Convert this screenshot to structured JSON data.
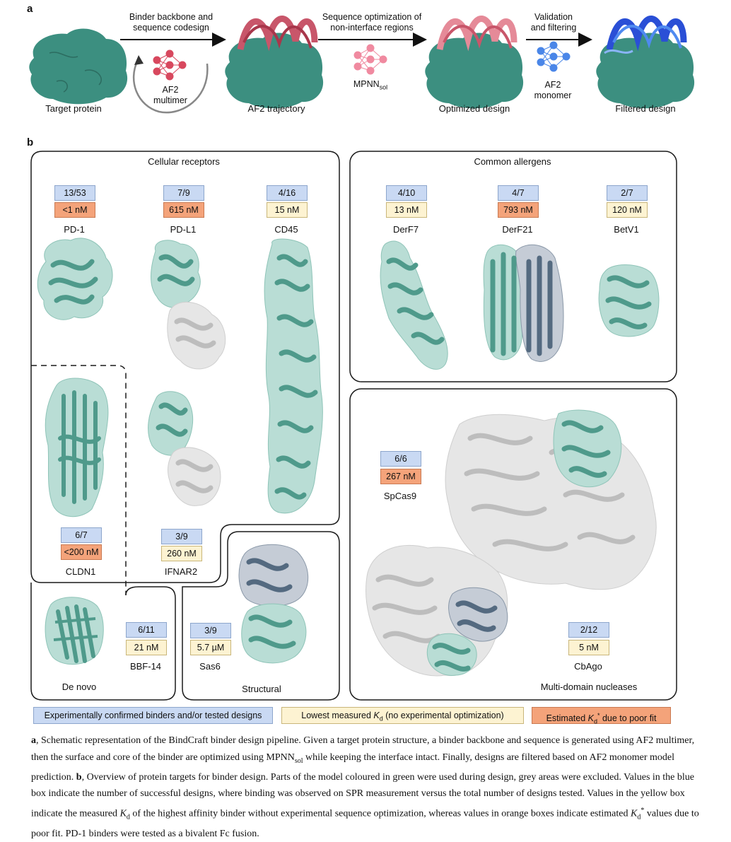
{
  "panel_a": {
    "letter": "a",
    "stage_labels": [
      "Target protein",
      "AF2 trajectory",
      "Optimized design",
      "Filtered design"
    ],
    "step1_text": [
      "Binder backbone and",
      "sequence codesign"
    ],
    "step1_net_label": [
      "AF2",
      "multimer"
    ],
    "step2_text": [
      "Sequence optimization of",
      "non-interface regions"
    ],
    "step2_net_label": "MPNN",
    "step2_net_label_sub": "sol",
    "step3_text": [
      "Validation",
      "and filtering"
    ],
    "step3_net_label": [
      "AF2",
      "monomer"
    ],
    "colors": {
      "target": "#3c8f80",
      "binder_red": "#c8566a",
      "binder_pink": "#e58a98",
      "binder_blue": "#2a4fd6",
      "net_red": "#d8485e",
      "net_pink": "#f08aa0",
      "net_blue": "#4a86e8"
    }
  },
  "panel_b": {
    "letter": "b",
    "groups": {
      "cellular": "Cellular receptors",
      "allergens": "Common allergens",
      "nucleases": "Multi-domain nucleases",
      "structural": "Structural",
      "denovo": "De novo"
    },
    "targets": {
      "pd1": {
        "name": "PD-1",
        "count": "13/53",
        "kd": "<1 nM",
        "kd_type": "estimated"
      },
      "pdl1": {
        "name": "PD-L1",
        "count": "7/9",
        "kd": "615 nM",
        "kd_type": "estimated"
      },
      "cd45": {
        "name": "CD45",
        "count": "4/16",
        "kd": "15 nM",
        "kd_type": "measured"
      },
      "derf7": {
        "name": "DerF7",
        "count": "4/10",
        "kd": "13 nM",
        "kd_type": "measured"
      },
      "derf21": {
        "name": "DerF21",
        "count": "4/7",
        "kd": "793 nM",
        "kd_type": "estimated"
      },
      "betv1": {
        "name": "BetV1",
        "count": "2/7",
        "kd": "120 nM",
        "kd_type": "measured"
      },
      "cldn1": {
        "name": "CLDN1",
        "count": "6/7",
        "kd": "<200 nM",
        "kd_type": "estimated"
      },
      "ifnar2": {
        "name": "IFNAR2",
        "count": "3/9",
        "kd": "260 nM",
        "kd_type": "measured"
      },
      "spcas9": {
        "name": "SpCas9",
        "count": "6/6",
        "kd": "267 nM",
        "kd_type": "estimated"
      },
      "bbf14": {
        "name": "BBF-14",
        "count": "6/11",
        "kd": "21 nM",
        "kd_type": "measured"
      },
      "sas6": {
        "name": "Sas6",
        "count": "3/9",
        "kd": "5.7 µM",
        "kd_type": "measured"
      },
      "cbago": {
        "name": "CbAgo",
        "count": "2/12",
        "kd": "5 nM",
        "kd_type": "measured"
      }
    },
    "colors": {
      "green": "#4f9a8b",
      "green_surface": "#b9ddd5",
      "grey": "#bdbdbd",
      "grey_surface": "#e6e6e6",
      "slate": "#546a80"
    }
  },
  "legend": {
    "blue": "Experimentally confirmed binders and/or tested designs",
    "yellow_prefix": "Lowest measured ",
    "yellow_k": "K",
    "yellow_sub": "d",
    "yellow_suffix": " (no experimental optimization)",
    "orange_prefix": "Estimated ",
    "orange_k": "K",
    "orange_sub": "d",
    "orange_sup": "*",
    "orange_suffix": " due to poor fit"
  },
  "caption": {
    "a_label": "a",
    "a_text_1": ", Schematic representation of the BindCraft binder design pipeline. Given a target protein structure, a binder backbone and sequence is generated using AF2 multimer, then the surface and core of the binder are optimized using MPNN",
    "a_sub": "sol",
    "a_text_2": " while keeping the interface intact. Finally, designs are filtered based on AF2 monomer model prediction. ",
    "b_label": "b",
    "b_text_1": ", Overview of protein targets for binder design. Parts of the model coloured in green were used during design, grey areas were excluded. Values in the blue box indicate the number of successful designs, where binding was observed on SPR measurement versus the total number of designs tested. Values in the yellow box indicate the measured ",
    "b_k1": "K",
    "b_sub1": "d",
    "b_text_2": " of the highest affinity binder without experimental sequence optimization, whereas values in orange boxes indicate estimated ",
    "b_k2": "K",
    "b_sub2": "d",
    "b_sup2": "*",
    "b_text_3": " values due to poor fit. PD-1 binders were tested as a bivalent Fc fusion."
  }
}
